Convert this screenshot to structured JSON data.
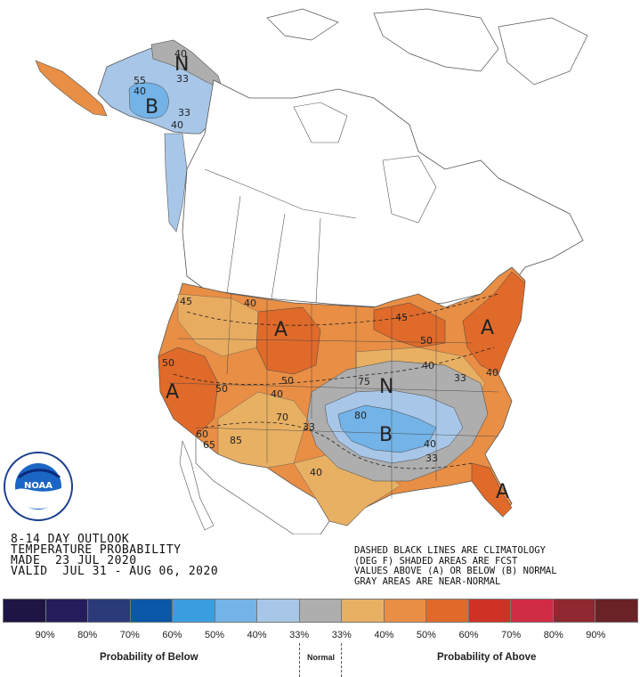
{
  "title_block": {
    "line1": "8-14 DAY OUTLOOK",
    "line2": "TEMPERATURE PROBABILITY",
    "line3": "MADE  23 JUL 2020",
    "line4": "VALID  JUL 31 - AUG 06, 2020"
  },
  "notes": {
    "line1": "DASHED BLACK LINES ARE CLIMATOLOGY",
    "line2": "(DEG F) SHADED AREAS ARE FCST",
    "line3": "VALUES ABOVE (A) OR BELOW (B) NORMAL",
    "line4": "GRAY AREAS ARE NEAR-NORMAL"
  },
  "legend": {
    "colors": [
      "#1f1544",
      "#231d5c",
      "#2b3b7a",
      "#0b57a8",
      "#3a9ede",
      "#73b3e7",
      "#a8c7e8",
      "#aeaeae",
      "#e8b063",
      "#e88e45",
      "#e06a2a",
      "#cf3224",
      "#d02c45",
      "#8f2830",
      "#6a2226"
    ],
    "ticks": [
      "90%",
      "80%",
      "70%",
      "60%",
      "50%",
      "40%",
      "33%",
      "33%",
      "40%",
      "50%",
      "60%",
      "70%",
      "80%",
      "90%"
    ],
    "below_label": "Probability of Below",
    "normal_label": "Normal",
    "above_label": "Probability of Above"
  },
  "map_labels": {
    "alaska_n": "N",
    "alaska_b": "B",
    "west_a": "A",
    "plains_a": "A",
    "northeast_a": "A",
    "central_n": "N",
    "central_b": "B",
    "florida_a": "A"
  },
  "contour_values": {
    "ak_40a": "40",
    "ak_55": "55",
    "ak_40b": "40",
    "ak_33": "33",
    "ak_40c": "40",
    "ak_33b": "33",
    "nw_45": "45",
    "nw_40": "40",
    "w_50": "50",
    "w_50b": "50",
    "w_50c": "50",
    "w_40": "40",
    "w_60": "60",
    "w_65": "65",
    "w_85": "85",
    "p_70": "70",
    "p_33": "33",
    "gl_45": "45",
    "gl_50": "50",
    "gl_40": "40",
    "c_75": "75",
    "c_33": "33",
    "c_80": "80",
    "c_40": "40",
    "c_33b": "33",
    "s_40": "40",
    "ne_40": "40"
  },
  "logo": {
    "text": "NOAA"
  }
}
